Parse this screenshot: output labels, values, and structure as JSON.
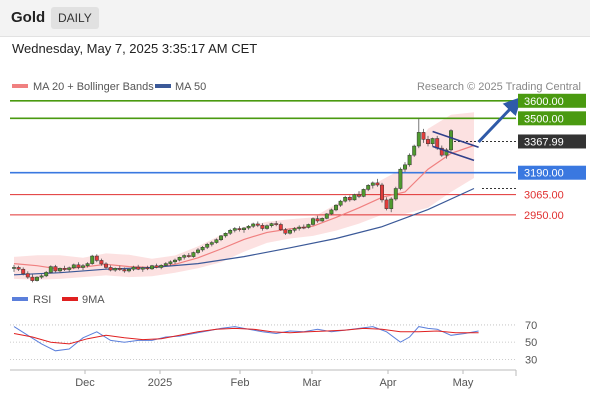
{
  "header": {
    "title": "Gold",
    "timeframe": "DAILY"
  },
  "subheader": {
    "datetime": "Wednesday, May 7, 2025 3:35:17 AM CET"
  },
  "legend_top": [
    {
      "label": "MA 20 + Bollinger Bands",
      "color": "#f08080"
    },
    {
      "label": "MA 50",
      "color": "#3b5998"
    }
  ],
  "legend_bottom": [
    {
      "label": "RSI",
      "color": "#5b7fdb"
    },
    {
      "label": "9MA",
      "color": "#e02020"
    }
  ],
  "credit": "Research © 2025 Trading Central",
  "chart_data": {
    "type": "candlestick",
    "ylim": [
      2550,
      3650
    ],
    "x_ticks": [
      "Dec",
      "2025",
      "Feb",
      "Mar",
      "Apr",
      "May"
    ],
    "levels": [
      {
        "label": "3600.00",
        "value": 3600,
        "color": "#4a9a10",
        "style": "badge"
      },
      {
        "label": "3500.00",
        "value": 3500,
        "color": "#4a9a10",
        "style": "badge"
      },
      {
        "label": "3190.00",
        "value": 3190,
        "color": "#3a78e0",
        "style": "badge"
      },
      {
        "label": "3065.00",
        "value": 3065,
        "color": "#e03030",
        "style": "text"
      },
      {
        "label": "2950.00",
        "value": 2950,
        "color": "#e03030",
        "style": "text"
      }
    ],
    "last_price": {
      "label": "3367.99",
      "value": 3368
    },
    "candles": [
      [
        2647,
        2665,
        2625,
        2650
      ],
      [
        2650,
        2660,
        2630,
        2640
      ],
      [
        2640,
        2650,
        2605,
        2615
      ],
      [
        2615,
        2628,
        2585,
        2595
      ],
      [
        2595,
        2610,
        2565,
        2575
      ],
      [
        2575,
        2600,
        2570,
        2595
      ],
      [
        2595,
        2612,
        2585,
        2602
      ],
      [
        2602,
        2630,
        2595,
        2622
      ],
      [
        2622,
        2662,
        2615,
        2655
      ],
      [
        2655,
        2665,
        2622,
        2630
      ],
      [
        2630,
        2650,
        2620,
        2645
      ],
      [
        2645,
        2660,
        2630,
        2638
      ],
      [
        2638,
        2655,
        2625,
        2648
      ],
      [
        2648,
        2672,
        2640,
        2665
      ],
      [
        2665,
        2680,
        2640,
        2650
      ],
      [
        2650,
        2670,
        2635,
        2660
      ],
      [
        2660,
        2680,
        2650,
        2672
      ],
      [
        2672,
        2722,
        2665,
        2715
      ],
      [
        2715,
        2725,
        2680,
        2690
      ],
      [
        2690,
        2700,
        2660,
        2670
      ],
      [
        2670,
        2680,
        2640,
        2650
      ],
      [
        2650,
        2662,
        2628,
        2635
      ],
      [
        2635,
        2650,
        2625,
        2645
      ],
      [
        2645,
        2660,
        2630,
        2638
      ],
      [
        2638,
        2650,
        2620,
        2630
      ],
      [
        2630,
        2645,
        2622,
        2640
      ],
      [
        2640,
        2660,
        2630,
        2652
      ],
      [
        2652,
        2665,
        2635,
        2640
      ],
      [
        2640,
        2655,
        2625,
        2648
      ],
      [
        2648,
        2660,
        2635,
        2642
      ],
      [
        2642,
        2665,
        2636,
        2660
      ],
      [
        2660,
        2672,
        2645,
        2650
      ],
      [
        2650,
        2668,
        2640,
        2662
      ],
      [
        2662,
        2680,
        2655,
        2672
      ],
      [
        2672,
        2690,
        2660,
        2682
      ],
      [
        2682,
        2700,
        2670,
        2692
      ],
      [
        2692,
        2712,
        2685,
        2708
      ],
      [
        2708,
        2725,
        2695,
        2718
      ],
      [
        2718,
        2732,
        2705,
        2712
      ],
      [
        2712,
        2740,
        2705,
        2735
      ],
      [
        2735,
        2760,
        2725,
        2750
      ],
      [
        2750,
        2772,
        2740,
        2765
      ],
      [
        2765,
        2790,
        2755,
        2782
      ],
      [
        2782,
        2800,
        2770,
        2792
      ],
      [
        2792,
        2815,
        2785,
        2808
      ],
      [
        2808,
        2835,
        2800,
        2830
      ],
      [
        2830,
        2850,
        2820,
        2845
      ],
      [
        2845,
        2870,
        2835,
        2862
      ],
      [
        2862,
        2880,
        2850,
        2872
      ],
      [
        2872,
        2885,
        2855,
        2865
      ],
      [
        2865,
        2880,
        2848,
        2875
      ],
      [
        2875,
        2892,
        2865,
        2885
      ],
      [
        2885,
        2905,
        2875,
        2898
      ],
      [
        2898,
        2912,
        2880,
        2890
      ],
      [
        2890,
        2902,
        2860,
        2872
      ],
      [
        2872,
        2895,
        2865,
        2888
      ],
      [
        2888,
        2905,
        2878,
        2900
      ],
      [
        2900,
        2915,
        2885,
        2895
      ],
      [
        2895,
        2905,
        2858,
        2865
      ],
      [
        2865,
        2875,
        2835,
        2845
      ],
      [
        2845,
        2870,
        2838,
        2862
      ],
      [
        2862,
        2880,
        2850,
        2872
      ],
      [
        2872,
        2890,
        2860,
        2880
      ],
      [
        2880,
        2895,
        2868,
        2878
      ],
      [
        2878,
        2900,
        2872,
        2895
      ],
      [
        2895,
        2935,
        2888,
        2928
      ],
      [
        2928,
        2945,
        2905,
        2915
      ],
      [
        2915,
        2935,
        2910,
        2930
      ],
      [
        2930,
        2960,
        2925,
        2955
      ],
      [
        2955,
        2985,
        2948,
        2978
      ],
      [
        2978,
        3010,
        2970,
        3005
      ],
      [
        3005,
        3035,
        2995,
        3028
      ],
      [
        3028,
        3058,
        3020,
        3050
      ],
      [
        3050,
        3060,
        3025,
        3035
      ],
      [
        3035,
        3070,
        3030,
        3065
      ],
      [
        3065,
        3085,
        3045,
        3055
      ],
      [
        3055,
        3100,
        3050,
        3095
      ],
      [
        3095,
        3125,
        3085,
        3118
      ],
      [
        3118,
        3140,
        3100,
        3132
      ],
      [
        3132,
        3155,
        3110,
        3120
      ],
      [
        3120,
        3132,
        3020,
        3035
      ],
      [
        3035,
        3050,
        2975,
        2985
      ],
      [
        2985,
        3050,
        2965,
        3040
      ],
      [
        3040,
        3110,
        3030,
        3100
      ],
      [
        3100,
        3220,
        3090,
        3210
      ],
      [
        3210,
        3250,
        3195,
        3235
      ],
      [
        3235,
        3300,
        3225,
        3290
      ],
      [
        3290,
        3350,
        3280,
        3342
      ],
      [
        3342,
        3500,
        3330,
        3420
      ],
      [
        3420,
        3440,
        3360,
        3380
      ],
      [
        3380,
        3400,
        3340,
        3355
      ],
      [
        3355,
        3390,
        3340,
        3385
      ],
      [
        3385,
        3400,
        3320,
        3330
      ],
      [
        3330,
        3345,
        3280,
        3290
      ],
      [
        3290,
        3330,
        3270,
        3320
      ],
      [
        3320,
        3438,
        3310,
        3430
      ]
    ],
    "ma20": [
      [
        0,
        2672
      ],
      [
        5,
        2660
      ],
      [
        10,
        2640
      ],
      [
        15,
        2652
      ],
      [
        20,
        2668
      ],
      [
        25,
        2655
      ],
      [
        30,
        2650
      ],
      [
        35,
        2668
      ],
      [
        40,
        2705
      ],
      [
        45,
        2755
      ],
      [
        50,
        2810
      ],
      [
        55,
        2850
      ],
      [
        60,
        2870
      ],
      [
        65,
        2885
      ],
      [
        70,
        2935
      ],
      [
        75,
        2990
      ],
      [
        80,
        3050
      ],
      [
        85,
        3080
      ],
      [
        90,
        3210
      ],
      [
        95,
        3300
      ],
      [
        100,
        3345
      ]
    ],
    "bb_upper": [
      [
        0,
        2710
      ],
      [
        5,
        2720
      ],
      [
        10,
        2720
      ],
      [
        15,
        2705
      ],
      [
        20,
        2730
      ],
      [
        25,
        2722
      ],
      [
        30,
        2700
      ],
      [
        35,
        2718
      ],
      [
        40,
        2770
      ],
      [
        45,
        2835
      ],
      [
        50,
        2880
      ],
      [
        55,
        2910
      ],
      [
        60,
        2925
      ],
      [
        65,
        2935
      ],
      [
        70,
        3010
      ],
      [
        75,
        3080
      ],
      [
        80,
        3150
      ],
      [
        85,
        3220
      ],
      [
        90,
        3440
      ],
      [
        95,
        3520
      ],
      [
        100,
        3535
      ]
    ],
    "bb_lower": [
      [
        0,
        2585
      ],
      [
        5,
        2580
      ],
      [
        10,
        2585
      ],
      [
        15,
        2595
      ],
      [
        20,
        2605
      ],
      [
        25,
        2595
      ],
      [
        30,
        2600
      ],
      [
        35,
        2620
      ],
      [
        40,
        2645
      ],
      [
        45,
        2680
      ],
      [
        50,
        2740
      ],
      [
        55,
        2790
      ],
      [
        60,
        2815
      ],
      [
        65,
        2830
      ],
      [
        70,
        2860
      ],
      [
        75,
        2900
      ],
      [
        80,
        2950
      ],
      [
        85,
        2955
      ],
      [
        90,
        2990
      ],
      [
        95,
        3080
      ],
      [
        100,
        3160
      ]
    ],
    "ma50": [
      [
        0,
        2608
      ],
      [
        10,
        2620
      ],
      [
        20,
        2640
      ],
      [
        30,
        2650
      ],
      [
        40,
        2672
      ],
      [
        50,
        2712
      ],
      [
        60,
        2762
      ],
      [
        70,
        2815
      ],
      [
        80,
        2882
      ],
      [
        90,
        2980
      ],
      [
        100,
        3100
      ]
    ],
    "pattern": {
      "upper": [
        [
          91,
          3425
        ],
        [
          101,
          3335
        ]
      ],
      "lower": [
        [
          91,
          3340
        ],
        [
          100,
          3260
        ]
      ]
    },
    "forecast_arrow": [
      [
        101,
        3365
      ],
      [
        109,
        3585
      ]
    ],
    "rsi": {
      "ylim": [
        20,
        85
      ],
      "ticks": [
        70,
        50,
        30
      ],
      "values": [
        [
          0,
          68
        ],
        [
          3,
          58
        ],
        [
          6,
          48
        ],
        [
          9,
          40
        ],
        [
          12,
          42
        ],
        [
          15,
          55
        ],
        [
          18,
          62
        ],
        [
          21,
          52
        ],
        [
          24,
          50
        ],
        [
          27,
          52
        ],
        [
          30,
          52
        ],
        [
          33,
          56
        ],
        [
          36,
          57
        ],
        [
          39,
          60
        ],
        [
          42,
          63
        ],
        [
          45,
          66
        ],
        [
          48,
          68
        ],
        [
          51,
          65
        ],
        [
          54,
          62
        ],
        [
          57,
          60
        ],
        [
          60,
          63
        ],
        [
          63,
          62
        ],
        [
          66,
          65
        ],
        [
          69,
          62
        ],
        [
          72,
          64
        ],
        [
          75,
          66
        ],
        [
          78,
          68
        ],
        [
          81,
          62
        ],
        [
          84,
          50
        ],
        [
          86,
          56
        ],
        [
          88,
          68
        ],
        [
          90,
          66
        ],
        [
          92,
          65
        ],
        [
          95,
          58
        ],
        [
          98,
          60
        ],
        [
          101,
          63
        ]
      ],
      "ma9": [
        [
          0,
          60
        ],
        [
          4,
          56
        ],
        [
          8,
          50
        ],
        [
          12,
          48
        ],
        [
          16,
          54
        ],
        [
          20,
          58
        ],
        [
          24,
          55
        ],
        [
          28,
          53
        ],
        [
          32,
          54
        ],
        [
          36,
          58
        ],
        [
          40,
          62
        ],
        [
          44,
          65
        ],
        [
          48,
          66
        ],
        [
          52,
          65
        ],
        [
          56,
          62
        ],
        [
          60,
          61
        ],
        [
          64,
          62
        ],
        [
          68,
          63
        ],
        [
          72,
          64
        ],
        [
          76,
          66
        ],
        [
          80,
          65
        ],
        [
          84,
          62
        ],
        [
          88,
          62
        ],
        [
          92,
          63
        ],
        [
          96,
          61
        ],
        [
          101,
          61
        ]
      ]
    }
  }
}
